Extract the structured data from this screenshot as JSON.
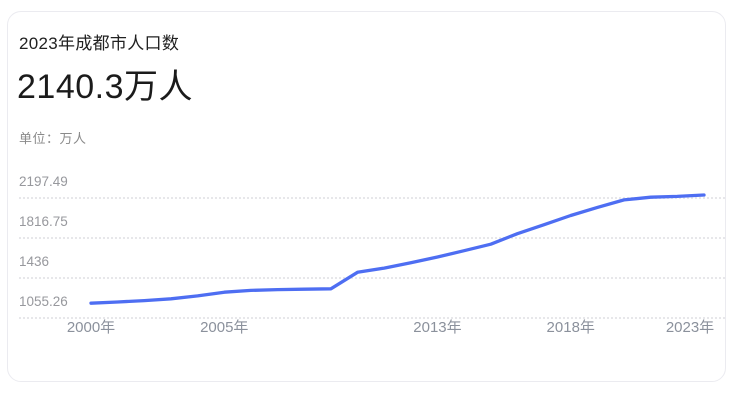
{
  "card": {
    "title": "2023年成都市人口数",
    "headline_value": "2140.3万人",
    "unit_label": "单位：万人"
  },
  "chart_data": {
    "type": "line",
    "title": "2023年成都市人口数",
    "ylabel": "万人",
    "line_color": "#4e6ef2",
    "grid": "horizontal-dotted",
    "legend_position": "none",
    "ylim": [
      1055.26,
      2197.49
    ],
    "xlim": [
      2000,
      2023
    ],
    "y_ticks": [
      {
        "label": "2197.49",
        "value": 2197.49
      },
      {
        "label": "1816.75",
        "value": 1816.75
      },
      {
        "label": "1436",
        "value": 1436
      },
      {
        "label": "1055.26",
        "value": 1055.26
      }
    ],
    "x_ticks": [
      {
        "label": "2000年",
        "year": 2000
      },
      {
        "label": "2005年",
        "year": 2005
      },
      {
        "label": "2013年",
        "year": 2013
      },
      {
        "label": "2018年",
        "year": 2018
      },
      {
        "label": "2023年",
        "year": 2023
      }
    ],
    "series": [
      {
        "name": "成都市人口数(万人)",
        "points": [
          [
            2000,
            1110.8
          ],
          [
            2001,
            1122
          ],
          [
            2002,
            1135
          ],
          [
            2003,
            1152
          ],
          [
            2004,
            1180
          ],
          [
            2005,
            1215
          ],
          [
            2006,
            1232
          ],
          [
            2007,
            1240
          ],
          [
            2008,
            1244
          ],
          [
            2009,
            1248
          ],
          [
            2010,
            1405
          ],
          [
            2011,
            1445
          ],
          [
            2012,
            1495
          ],
          [
            2013,
            1550
          ],
          [
            2014,
            1610
          ],
          [
            2015,
            1672
          ],
          [
            2016,
            1772
          ],
          [
            2017,
            1858
          ],
          [
            2018,
            1945
          ],
          [
            2019,
            2022
          ],
          [
            2020,
            2094
          ],
          [
            2021,
            2119
          ],
          [
            2022,
            2127
          ],
          [
            2023,
            2140.3
          ]
        ]
      }
    ]
  }
}
